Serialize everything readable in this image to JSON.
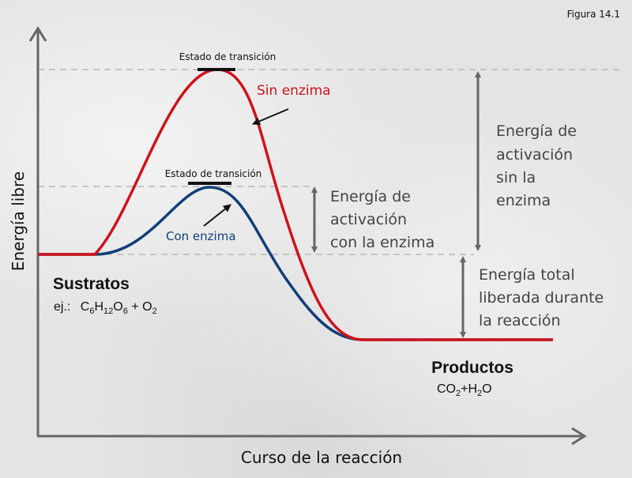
{
  "figure_label": "Figura 14.1",
  "axes": {
    "y_label": "Energía libre",
    "x_label": "Curso de la reacción"
  },
  "transition_state_uncatalyzed": "Estado de transición",
  "transition_state_catalyzed": "Estado de transición",
  "curves": {
    "without_enzyme": {
      "label": "Sin enzima",
      "color": "#d0121b"
    },
    "with_enzyme": {
      "label": "Con enzima",
      "color": "#123f78"
    }
  },
  "substrates": {
    "title": "Sustratos",
    "prefix": "ej.:",
    "formula": [
      "C",
      "6",
      "H",
      "12",
      "O",
      "6",
      " + O",
      "2"
    ]
  },
  "products": {
    "title": "Productos",
    "formula": [
      "CO",
      "2",
      "+H",
      "2",
      "O"
    ]
  },
  "annotations": {
    "activation_without": [
      "Energía de",
      "activación",
      "sin la",
      "enzima"
    ],
    "activation_with": [
      "Energía de",
      "activación",
      "con la enzima"
    ],
    "total_released": [
      "Energía total",
      "liberada durante",
      "la reacción"
    ]
  }
}
